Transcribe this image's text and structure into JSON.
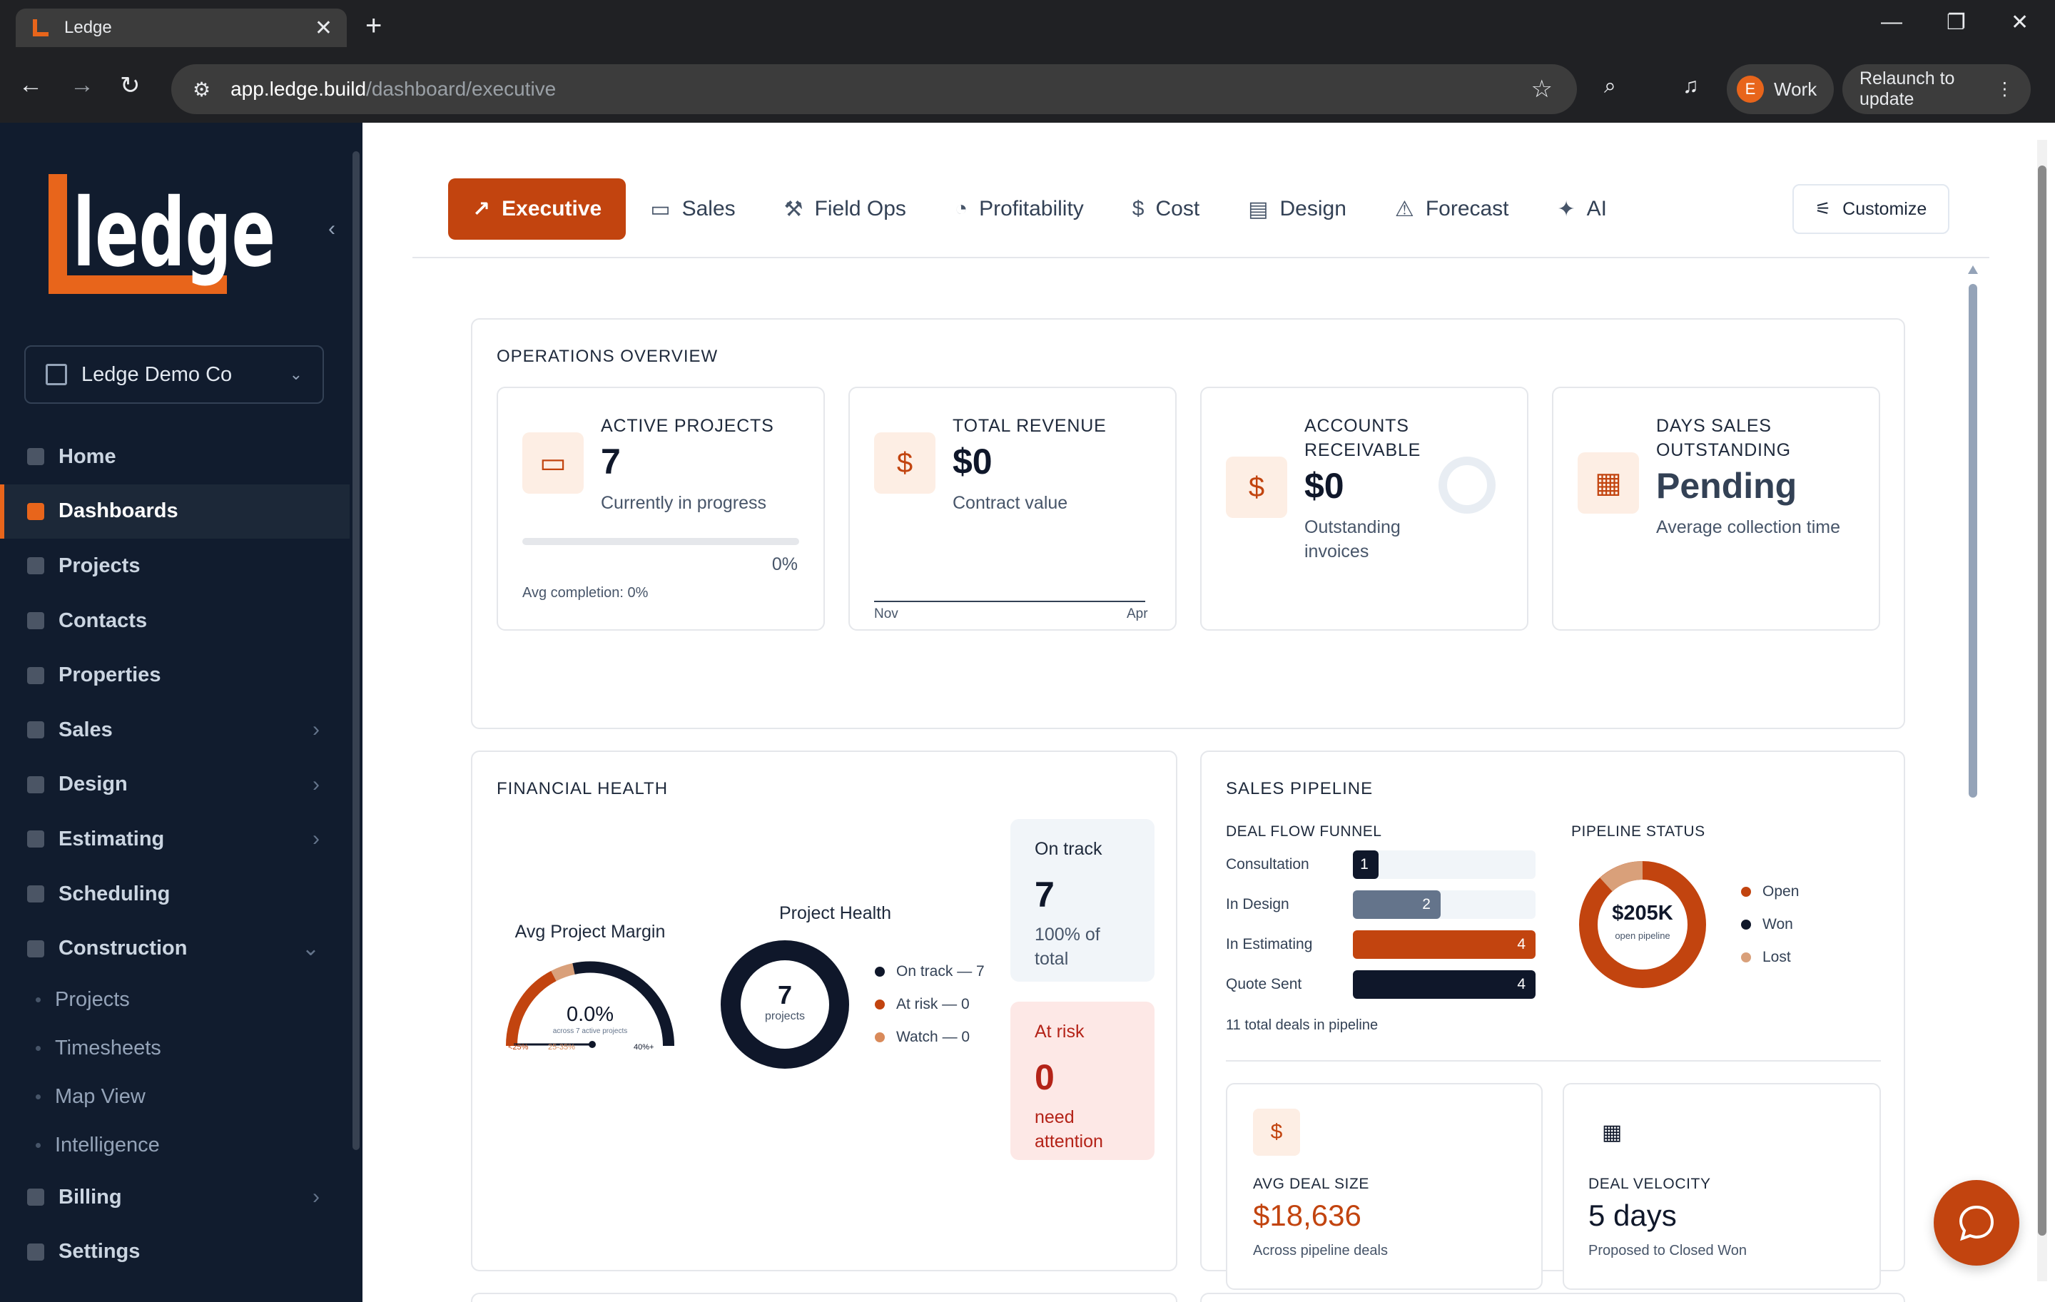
{
  "browser": {
    "tab_title": "Ledge",
    "url_host": "app.ledge.build",
    "url_path": "/dashboard/executive",
    "profile_initial": "E",
    "profile_name": "Work",
    "relaunch_label": "Relaunch to update"
  },
  "sidebar": {
    "company": "Ledge Demo Co",
    "items": [
      {
        "label": "Home"
      },
      {
        "label": "Dashboards"
      },
      {
        "label": "Projects"
      },
      {
        "label": "Contacts"
      },
      {
        "label": "Properties"
      },
      {
        "label": "Sales"
      },
      {
        "label": "Design"
      },
      {
        "label": "Estimating"
      },
      {
        "label": "Scheduling"
      },
      {
        "label": "Construction"
      },
      {
        "label": "Billing"
      },
      {
        "label": "Settings"
      }
    ],
    "construction_sub": [
      {
        "label": "Projects"
      },
      {
        "label": "Timesheets"
      },
      {
        "label": "Map View"
      },
      {
        "label": "Intelligence"
      }
    ]
  },
  "tabs": [
    {
      "label": "Executive",
      "icon": "trending-up-icon"
    },
    {
      "label": "Sales",
      "icon": "briefcase-icon"
    },
    {
      "label": "Field Ops",
      "icon": "hammer-icon"
    },
    {
      "label": "Profitability",
      "icon": "pie-icon"
    },
    {
      "label": "Cost",
      "icon": "dollar-icon"
    },
    {
      "label": "Design",
      "icon": "document-icon"
    },
    {
      "label": "Forecast",
      "icon": "warning-icon"
    },
    {
      "label": "AI",
      "icon": "sparkles-icon"
    }
  ],
  "customize_label": "Customize",
  "operations": {
    "title": "OPERATIONS OVERVIEW",
    "active": {
      "label": "ACTIVE PROJECTS",
      "value": "7",
      "sub": "Currently in progress",
      "pct": "0%",
      "avg": "Avg completion: 0%"
    },
    "revenue": {
      "label": "TOTAL REVENUE",
      "value": "$0",
      "sub": "Contract value",
      "x_start": "Nov",
      "x_end": "Apr"
    },
    "ar": {
      "label1": "ACCOUNTS",
      "label2": "RECEIVABLE",
      "value": "$0",
      "sub1": "Outstanding",
      "sub2": "invoices"
    },
    "dso": {
      "label1": "DAYS SALES",
      "label2": "OUTSTANDING",
      "value": "Pending",
      "sub": "Average collection time"
    }
  },
  "financial": {
    "title": "FINANCIAL HEALTH",
    "margin_title": "Avg Project Margin",
    "margin_value": "0.0%",
    "margin_caption": "across 7 active projects",
    "margin_ticks": [
      "<25%",
      "25-35%",
      "40%+"
    ],
    "health_title": "Project Health",
    "health_count": "7",
    "health_unit": "projects",
    "legend": [
      {
        "label": "On track — 7",
        "color": "#0f172a"
      },
      {
        "label": "At risk — 0",
        "color": "#c2440f"
      },
      {
        "label": "Watch — 0",
        "color": "#d98a5a"
      }
    ],
    "ontrack": {
      "label": "On track",
      "value": "7",
      "sub1": "100% of",
      "sub2": "total"
    },
    "atrisk": {
      "label": "At risk",
      "value": "0",
      "sub1": "need",
      "sub2": "attention"
    }
  },
  "pipeline": {
    "title": "SALES PIPELINE",
    "funnel_title": "DEAL FLOW FUNNEL",
    "funnel": [
      {
        "label": "Consultation",
        "value": "1",
        "color": "#0f172a",
        "fraction": 0.14
      },
      {
        "label": "In Design",
        "value": "2",
        "color": "#64748b",
        "fraction": 0.48
      },
      {
        "label": "In Estimating",
        "value": "4",
        "color": "#c2440f",
        "fraction": 1.0
      },
      {
        "label": "Quote Sent",
        "value": "4",
        "color": "#0f172a",
        "fraction": 1.0
      }
    ],
    "funnel_total": "11 total deals in pipeline",
    "status_title": "PIPELINE STATUS",
    "status_value": "$205K",
    "status_caption": "open pipeline",
    "status_legend": [
      {
        "label": "Open",
        "color": "#c2440f"
      },
      {
        "label": "Won",
        "color": "#0f172a"
      },
      {
        "label": "Lost",
        "color": "#d9a07a"
      }
    ],
    "avg_deal": {
      "label": "AVG DEAL SIZE",
      "value": "$18,636",
      "sub": "Across pipeline deals"
    },
    "velocity": {
      "label": "DEAL VELOCITY",
      "value": "5 days",
      "sub": "Proposed to Closed Won"
    }
  }
}
